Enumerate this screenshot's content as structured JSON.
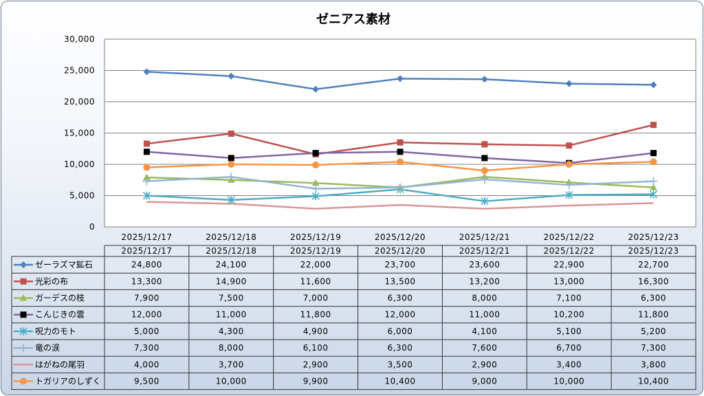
{
  "chart_data": {
    "type": "line",
    "title": "ゼニアス素材",
    "categories": [
      "2025/12/17",
      "2025/12/18",
      "2025/12/19",
      "2025/12/20",
      "2025/12/21",
      "2025/12/22",
      "2025/12/23"
    ],
    "y_ticks": [
      "0",
      "5,000",
      "10,000",
      "15,000",
      "20,000",
      "25,000",
      "30,000"
    ],
    "ylim": [
      0,
      30000
    ],
    "grid": true,
    "legend": "data-table-bottom",
    "series": [
      {
        "name": "ゼーラズマ鉱石",
        "color": "#4f81bd",
        "marker": "diamond",
        "values": [
          24800,
          24100,
          22000,
          23700,
          23600,
          22900,
          22700
        ],
        "labels": [
          "24,800",
          "24,100",
          "22,000",
          "23,700",
          "23,600",
          "22,900",
          "22,700"
        ]
      },
      {
        "name": "光彩の布",
        "color": "#c0504d",
        "marker": "square",
        "values": [
          13300,
          14900,
          11600,
          13500,
          13200,
          13000,
          16300
        ],
        "labels": [
          "13,300",
          "14,900",
          "11,600",
          "13,500",
          "13,200",
          "13,000",
          "16,300"
        ]
      },
      {
        "name": "ガーデスの枝",
        "color": "#9bbb59",
        "marker": "triangle",
        "values": [
          7900,
          7500,
          7000,
          6300,
          8000,
          7100,
          6300
        ],
        "labels": [
          "7,900",
          "7,500",
          "7,000",
          "6,300",
          "8,000",
          "7,100",
          "6,300"
        ]
      },
      {
        "name": "こんじきの雲",
        "color": "#8064a2",
        "marker": "blacksquare",
        "values": [
          12000,
          11000,
          11800,
          12000,
          11000,
          10200,
          11800
        ],
        "labels": [
          "12,000",
          "11,000",
          "11,800",
          "12,000",
          "11,000",
          "10,200",
          "11,800"
        ]
      },
      {
        "name": "呪力のモト",
        "color": "#4bacc6",
        "marker": "star",
        "values": [
          5000,
          4300,
          4900,
          6000,
          4100,
          5100,
          5200
        ],
        "labels": [
          "5,000",
          "4,300",
          "4,900",
          "6,000",
          "4,100",
          "5,100",
          "5,200"
        ]
      },
      {
        "name": "竜の涙",
        "color": "#95b3d7",
        "marker": "plus",
        "values": [
          7300,
          8000,
          6100,
          6300,
          7600,
          6700,
          7300
        ],
        "labels": [
          "7,300",
          "8,000",
          "6,100",
          "6,300",
          "7,600",
          "6,700",
          "7,300"
        ]
      },
      {
        "name": "はがねの尾羽",
        "color": "#d99694",
        "marker": "none",
        "values": [
          4000,
          3700,
          2900,
          3500,
          2900,
          3400,
          3800
        ],
        "labels": [
          "4,000",
          "3,700",
          "2,900",
          "3,500",
          "2,900",
          "3,400",
          "3,800"
        ]
      },
      {
        "name": "トガリアのしずく",
        "color": "#f79646",
        "marker": "circle",
        "values": [
          9500,
          10000,
          9900,
          10400,
          9000,
          10000,
          10400
        ],
        "labels": [
          "9,500",
          "10,000",
          "9,900",
          "10,400",
          "9,000",
          "10,000",
          "10,400"
        ]
      }
    ]
  }
}
